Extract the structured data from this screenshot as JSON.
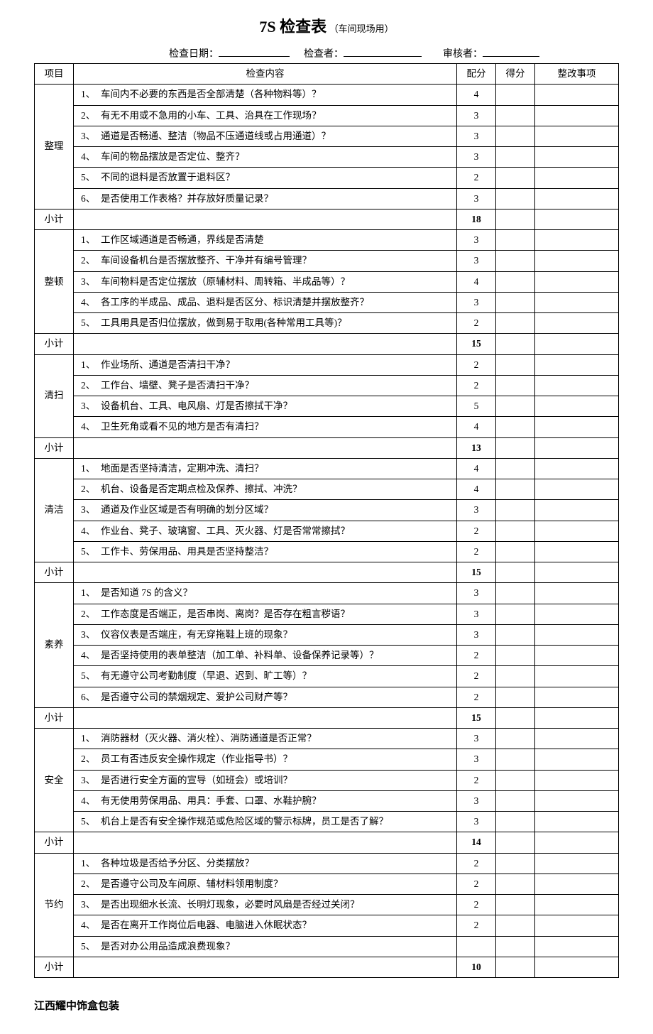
{
  "title": {
    "main": "7S 检查表",
    "sub": "（车间现场用）"
  },
  "meta": {
    "date_label": "检查日期：",
    "inspector_label": "检查者：",
    "reviewer_label": "审核者："
  },
  "headers": {
    "category": "项目",
    "content": "检查内容",
    "score": "配分",
    "got": "得分",
    "fix": "整改事项"
  },
  "subtotal_label": "小计",
  "sections": [
    {
      "name": "整理",
      "items": [
        {
          "num": "1、",
          "text": "车间内不必要的东西是否全部清楚（各种物料等）？",
          "score": 4
        },
        {
          "num": "2、",
          "text": "有无不用或不急用的小车、工具、治具在工作现场？",
          "score": 3
        },
        {
          "num": "3、",
          "text": "通道是否畅通、整洁（物品不压通道线或占用通道）？",
          "score": 3
        },
        {
          "num": "4、",
          "text": "车间的物品摆放是否定位、整齐？",
          "score": 3
        },
        {
          "num": "5、",
          "text": "不同的退料是否放置于退料区？",
          "score": 2
        },
        {
          "num": "6、",
          "text": "是否使用工作表格？并存放好质量记录？",
          "score": 3
        }
      ],
      "subtotal": 18
    },
    {
      "name": "整顿",
      "items": [
        {
          "num": "1、",
          "text": "工作区域通道是否畅通，界线是否清楚",
          "score": 3
        },
        {
          "num": "2、",
          "text": "车间设备机台是否摆放整齐、干净并有编号管理？",
          "score": 3
        },
        {
          "num": "3、",
          "text": "车间物料是否定位摆放（原辅材料、周转箱、半成品等）？",
          "score": 4
        },
        {
          "num": "4、",
          "text": "各工序的半成品、成品、退料是否区分、标识清楚并摆放整齐？",
          "score": 3
        },
        {
          "num": "5、",
          "text": "工具用具是否归位摆放，做到易于取用(各种常用工具等)？",
          "score": 2
        }
      ],
      "subtotal": 15
    },
    {
      "name": "清扫",
      "items": [
        {
          "num": "1、",
          "text": "作业场所、通道是否清扫干净？",
          "score": 2
        },
        {
          "num": "2、",
          "text": "工作台、墙壁、凳子是否清扫干净？",
          "score": 2
        },
        {
          "num": "3、",
          "text": "设备机台、工具、电风扇、灯是否擦拭干净？",
          "score": 5
        },
        {
          "num": "4、",
          "text": "卫生死角或看不见的地方是否有清扫？",
          "score": 4
        }
      ],
      "subtotal": 13
    },
    {
      "name": "清洁",
      "items": [
        {
          "num": "1、",
          "text": "地面是否坚持清洁，定期冲洗、清扫？",
          "score": 4
        },
        {
          "num": "2、",
          "text": "机台、设备是否定期点检及保养、擦拭、冲洗？",
          "score": 4
        },
        {
          "num": "3、",
          "text": "通道及作业区域是否有明确的划分区域？",
          "score": 3
        },
        {
          "num": "4、",
          "text": "作业台、凳子、玻璃窗、工具、灭火器、灯是否常常擦拭？",
          "score": 2
        },
        {
          "num": "5、",
          "text": "工作卡、劳保用品、用具是否坚持整洁？",
          "score": 2
        }
      ],
      "subtotal": 15
    },
    {
      "name": "素养",
      "items": [
        {
          "num": "1、",
          "text": "是否知道 7S 的含义？",
          "score": 3
        },
        {
          "num": "2、",
          "text": "工作态度是否端正，是否串岗、离岗？是否存在粗言秽语？",
          "score": 3
        },
        {
          "num": "3、",
          "text": "仪容仪表是否端庄，有无穿拖鞋上班的现象？",
          "score": 3
        },
        {
          "num": "4、",
          "text": "是否坚持使用的表单整洁（加工单、补料单、设备保养记录等）？",
          "score": 2
        },
        {
          "num": "5、",
          "text": "有无遵守公司考勤制度（早退、迟到、旷工等）？",
          "score": 2
        },
        {
          "num": "6、",
          "text": "是否遵守公司的禁烟规定、爱护公司财产等？",
          "score": 2
        }
      ],
      "subtotal": 15
    },
    {
      "name": "安全",
      "items": [
        {
          "num": "1、",
          "text": "消防器材（灭火器、消火栓）、消防通道是否正常？",
          "score": 3
        },
        {
          "num": "2、",
          "text": "员工有否违反安全操作规定（作业指导书）？",
          "score": 3
        },
        {
          "num": "3、",
          "text": "是否进行安全方面的宣导（如班会）或培训？",
          "score": 2
        },
        {
          "num": "4、",
          "text": "有无使用劳保用品、用具：手套、口罩、水鞋护腕？",
          "score": 3
        },
        {
          "num": "5、",
          "text": "机台上是否有安全操作规范或危险区域的警示标牌，员工是否了解？",
          "score": 3
        }
      ],
      "subtotal": 14
    },
    {
      "name": "节约",
      "items": [
        {
          "num": "1、",
          "text": "各种垃圾是否给予分区、分类摆放？",
          "score": 2
        },
        {
          "num": "2、",
          "text": "是否遵守公司及车间原、辅材料领用制度？",
          "score": 2
        },
        {
          "num": "3、",
          "text": "是否出现细水长流、长明灯现象，必要时风扇是否经过关闭？",
          "score": 2
        },
        {
          "num": "4、",
          "text": "是否在离开工作岗位后电器、电脑进入休眠状态？",
          "score": 2
        },
        {
          "num": "5、",
          "text": "是否对办公用品造成浪费现象？",
          "score": ""
        }
      ],
      "subtotal": 10
    }
  ],
  "footer": "江西耀中饰盒包装"
}
